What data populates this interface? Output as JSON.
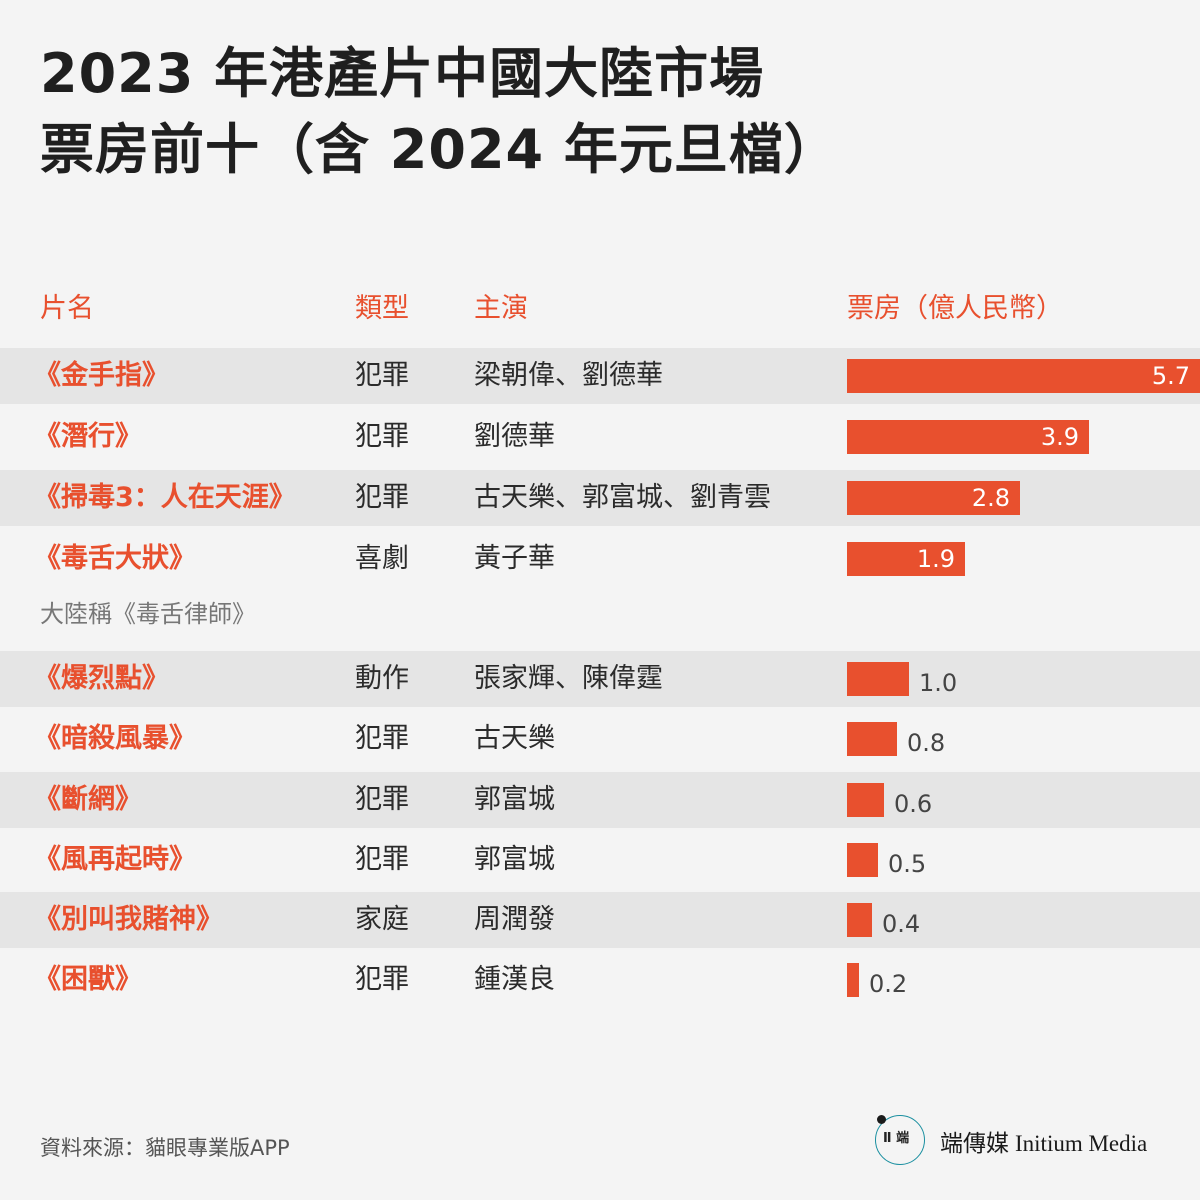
{
  "title": "2023 年港產片中國大陸市場\n票房前十（含 2024 年元旦檔）",
  "headers": {
    "film": "片名",
    "genre": "類型",
    "cast": "主演",
    "box": "票房（億人民幣）"
  },
  "note": "大陸稱《毒舌律師》",
  "source": "資料來源：貓眼專業版APP",
  "logo": {
    "glyph": "Ⅱ 端",
    "zh": "端傳媒",
    "en": "Initium Media"
  },
  "colors": {
    "accent": "#e8502e",
    "row_shade": "#e5e5e5",
    "background": "#f4f4f4"
  },
  "chart_data": {
    "type": "bar",
    "orientation": "horizontal",
    "title": "2023 年港產片中國大陸市場票房前十（含 2024 年元旦檔）",
    "value_label": "票房（億人民幣）",
    "xlim": [
      0,
      5.7
    ],
    "categories": [
      "《金手指》",
      "《潛行》",
      "《掃毒3：人在天涯》",
      "《毒舌大狀》",
      "《爆烈點》",
      "《暗殺風暴》",
      "《斷網》",
      "《風再起時》",
      "《別叫我賭神》",
      "《困獸》"
    ],
    "values": [
      5.7,
      3.9,
      2.8,
      1.9,
      1.0,
      0.8,
      0.6,
      0.5,
      0.4,
      0.2
    ],
    "value_labels": [
      "5.7",
      "3.9",
      "2.8",
      "1.9",
      "1.0",
      "0.8",
      "0.6",
      "0.5",
      "0.4",
      "0.2"
    ],
    "genres": [
      "犯罪",
      "犯罪",
      "犯罪",
      "喜劇",
      "動作",
      "犯罪",
      "犯罪",
      "犯罪",
      "家庭",
      "犯罪"
    ],
    "cast": [
      "梁朝偉、劉德華",
      "劉德華",
      "古天樂、郭富城、劉青雲",
      "黃子華",
      "張家輝、陳偉霆",
      "古天樂",
      "郭富城",
      "郭富城",
      "周潤發",
      "鍾漢良"
    ]
  }
}
